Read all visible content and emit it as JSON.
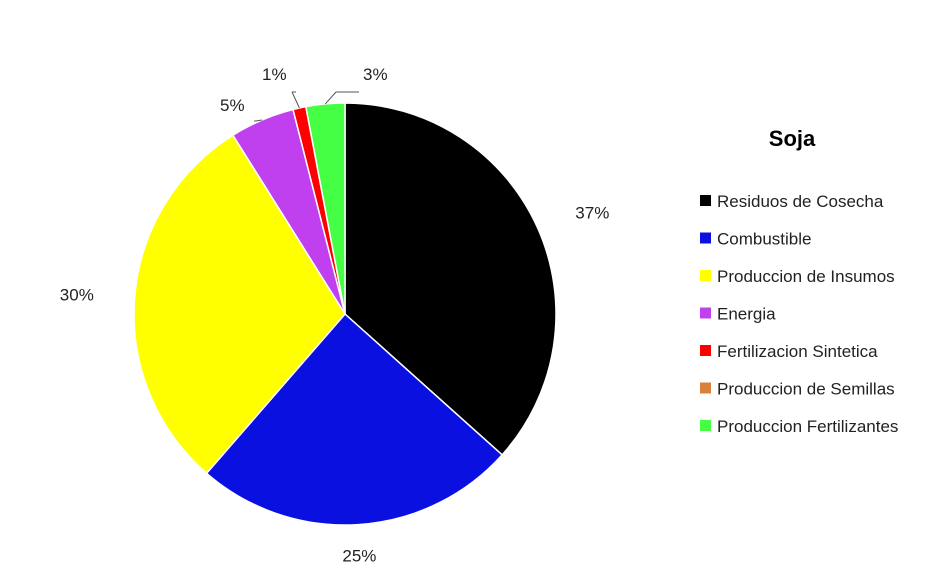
{
  "chart_data": {
    "type": "pie",
    "title": "Soja",
    "legend_position": "right",
    "start_angle_deg": 0,
    "direction": "clockwise",
    "slices": [
      {
        "name": "Residuos de Cosecha",
        "value": 37,
        "label": "37%",
        "color": "#000000"
      },
      {
        "name": "Combustible",
        "value": 25,
        "label": "25%",
        "color": "#0a10e0"
      },
      {
        "name": "Produccion de Insumos",
        "value": 30,
        "label": "30%",
        "color": "#ffff00"
      },
      {
        "name": "Energia",
        "value": 5,
        "label": "5%",
        "color": "#c040f0"
      },
      {
        "name": "Fertilizacion Sintetica",
        "value": 1,
        "label": "1%",
        "color": "#ff0000"
      },
      {
        "name": "Produccion de Semillas",
        "value": 0,
        "label": "",
        "color": "#d9803a"
      },
      {
        "name": "Produccion Fertilizantes",
        "value": 3,
        "label": "3%",
        "color": "#44ff44"
      }
    ]
  }
}
